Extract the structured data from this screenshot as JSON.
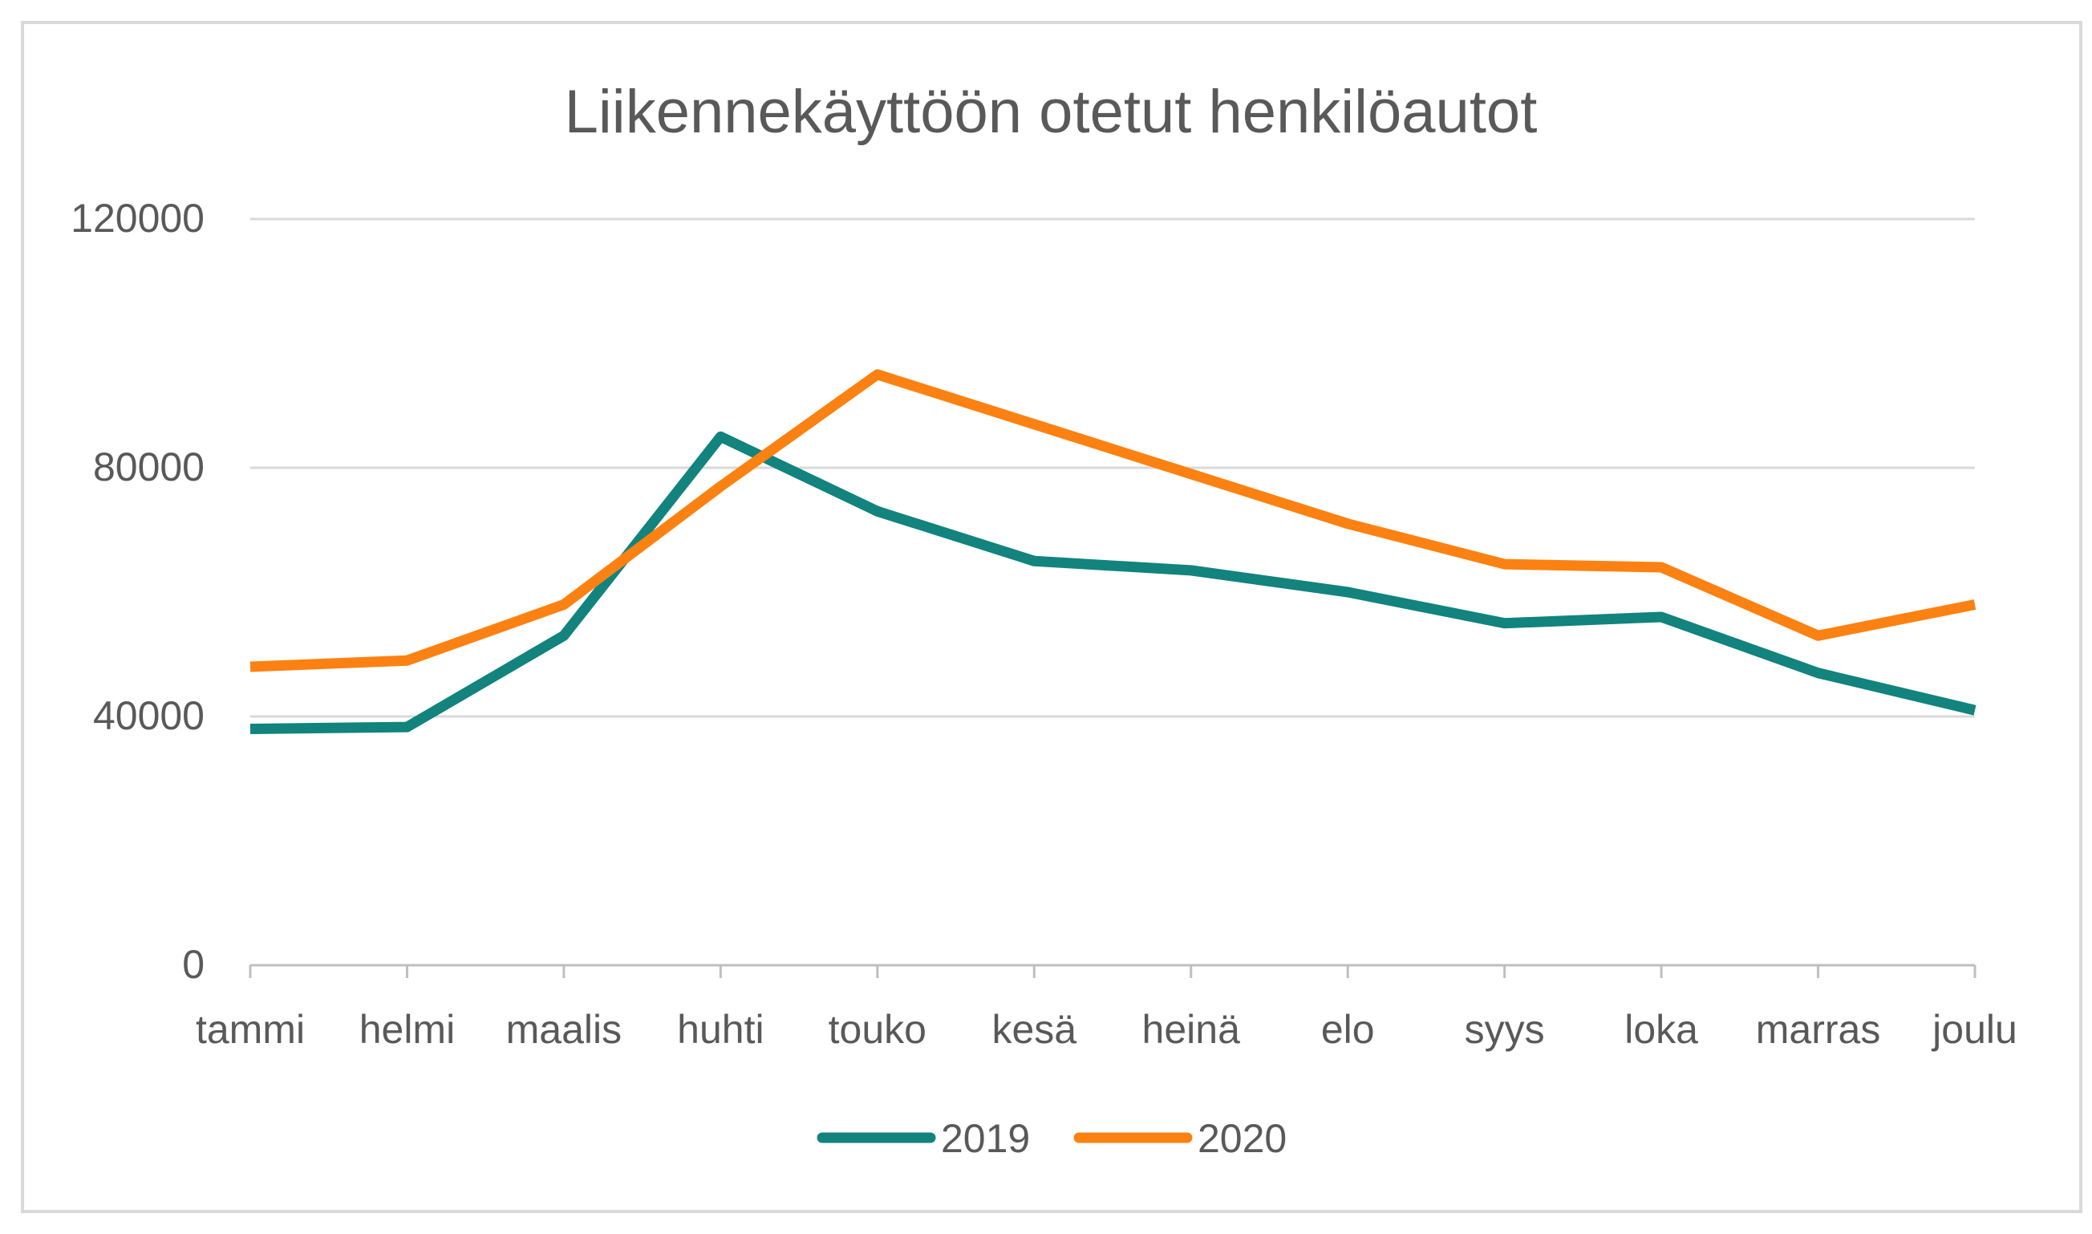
{
  "chart_data": {
    "type": "line",
    "title": "Liikennekäyttöön otetut henkilöautot",
    "categories": [
      "tammi",
      "helmi",
      "maalis",
      "huhti",
      "touko",
      "kesä",
      "heinä",
      "elo",
      "syys",
      "loka",
      "marras",
      "joulu"
    ],
    "series": [
      {
        "name": "2019",
        "color": "#12837d",
        "values": [
          38000,
          38300,
          53000,
          85000,
          73000,
          65000,
          63500,
          60000,
          55000,
          56000,
          47000,
          41000
        ]
      },
      {
        "name": "2020",
        "color": "#fb8212",
        "values": [
          48000,
          49000,
          58000,
          77000,
          95000,
          87000,
          79000,
          71000,
          64500,
          64000,
          53000,
          58000
        ]
      }
    ],
    "y_ticks": [
      "0",
      "40000",
      "80000",
      "120000"
    ],
    "ylim": [
      0,
      120000
    ],
    "grid": true,
    "legend_position": "bottom"
  },
  "colors": {
    "gridline": "#d9d9d9",
    "axis": "#bfbfbf",
    "text": "#595959",
    "border": "#d9d9d9"
  }
}
